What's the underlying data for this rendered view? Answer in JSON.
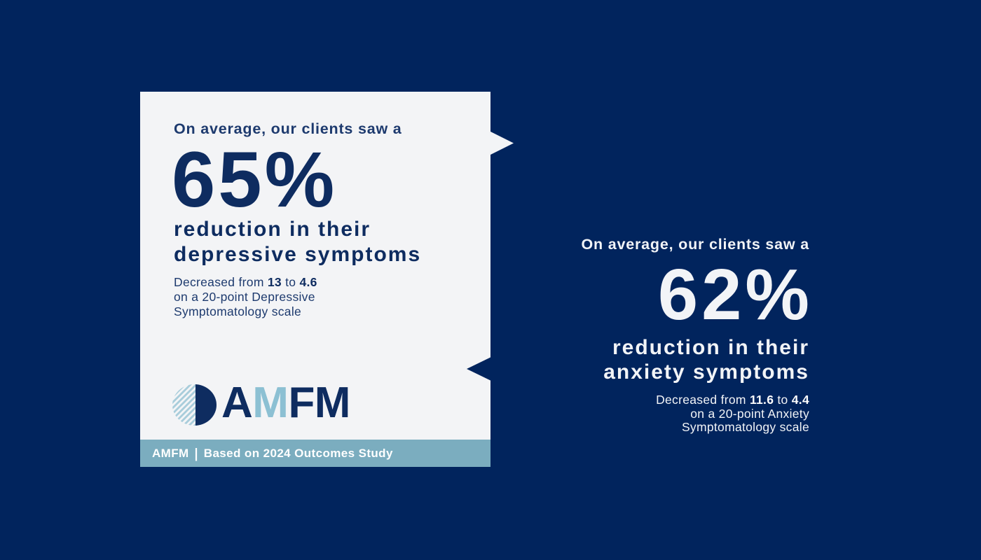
{
  "colors": {
    "background_navy": "#01245d",
    "card_offwhite": "#f3f4f6",
    "navy_text": "#0e2c60",
    "footer_bar_blue": "#7badbf",
    "logo_light_blue": "#8cc0d3",
    "white_text": "#f2f4f7"
  },
  "left_card": {
    "intro": "On average, our clients saw a",
    "stat_value": "65%",
    "headline": [
      "reduction in their",
      "depressive symptoms"
    ],
    "detail": {
      "prefix": "Decreased from ",
      "from": "13",
      "connector": " to ",
      "to": "4.6",
      "line2": "on a 20-point Depressive",
      "line3": "Symptomatology scale"
    },
    "logo": {
      "part1": "A",
      "part2": "M",
      "part3": "FM"
    },
    "footer": {
      "brand": "AMFM",
      "separator": "|",
      "text": "Based on 2024 Outcomes Study"
    }
  },
  "right_panel": {
    "intro": "On average, our clients saw a",
    "stat_value": "62%",
    "headline": [
      "reduction in their",
      "anxiety symptoms"
    ],
    "detail": {
      "prefix": "Decreased from ",
      "from": "11.6",
      "connector": " to ",
      "to": "4.4",
      "line2": "on a 20-point Anxiety",
      "line3": "Symptomatology scale"
    }
  }
}
